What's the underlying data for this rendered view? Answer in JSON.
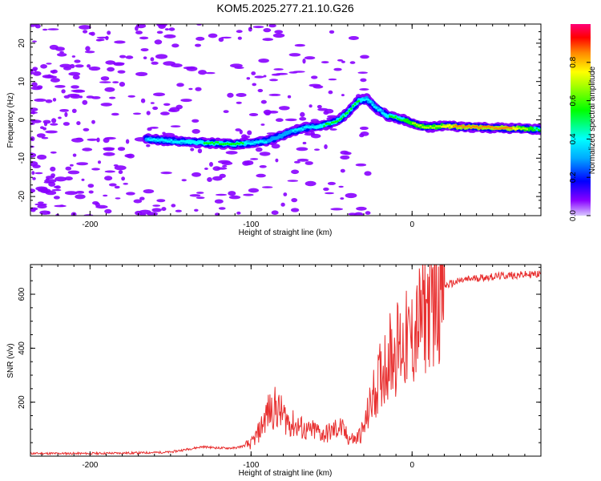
{
  "chart_data": [
    {
      "type": "heatmap",
      "title": "KOM5.2025.277.21.10.G26",
      "xlabel": "Height of straight line (km)",
      "ylabel": "Frequency (Hz)",
      "xlim": [
        -237,
        80
      ],
      "ylim": [
        -25,
        25
      ],
      "xticks": [
        -200,
        -100,
        0
      ],
      "yticks": [
        -20,
        -10,
        0,
        10,
        20
      ],
      "colorbar": {
        "label": "Normalized spectral amplitude",
        "range": [
          0,
          1
        ],
        "ticks": [
          0.0,
          0.2,
          0.4,
          0.6,
          0.8
        ]
      },
      "ridge": {
        "x": [
          -165,
          -150,
          -130,
          -110,
          -100,
          -90,
          -85,
          -75,
          -65,
          -55,
          -45,
          -40,
          -33,
          -28,
          -22,
          -15,
          -10,
          -5,
          0,
          10,
          20,
          30,
          45,
          60,
          70,
          80
        ],
        "freq": [
          -5,
          -5.5,
          -6,
          -6.3,
          -6,
          -5.6,
          -4.8,
          -3,
          -2,
          -1.5,
          0,
          2,
          5,
          5.5,
          3,
          1,
          0.5,
          0,
          -1,
          -2,
          -1.5,
          -1.8,
          -2,
          -2.2,
          -2.3,
          -2.5
        ],
        "amplitude": [
          0.3,
          0.35,
          0.4,
          0.45,
          0.35,
          0.3,
          0.25,
          0.3,
          0.35,
          0.4,
          0.45,
          0.5,
          0.4,
          0.35,
          0.3,
          0.4,
          0.45,
          0.5,
          0.55,
          0.6,
          0.7,
          0.8,
          0.85,
          0.8,
          0.6,
          0.4
        ]
      }
    },
    {
      "type": "line",
      "xlabel": "Height of straight line (km)",
      "ylabel": "SNR (v/v)",
      "xlim": [
        -237,
        80
      ],
      "ylim": [
        0,
        710
      ],
      "xticks": [
        -200,
        -100,
        0
      ],
      "yticks": [
        200,
        400,
        600
      ],
      "series": [
        {
          "name": "SNR",
          "color": "#e83030",
          "x": [
            -237,
            -200,
            -170,
            -150,
            -140,
            -130,
            -120,
            -110,
            -100,
            -95,
            -90,
            -85,
            -80,
            -75,
            -70,
            -65,
            -60,
            -55,
            -50,
            -45,
            -40,
            -35,
            -30,
            -25,
            -20,
            -15,
            -10,
            -5,
            0,
            5,
            10,
            15,
            20,
            30,
            40,
            50,
            60,
            70,
            80
          ],
          "values": [
            10,
            10,
            12,
            15,
            25,
            35,
            30,
            30,
            45,
            90,
            160,
            180,
            150,
            120,
            110,
            90,
            95,
            80,
            90,
            110,
            70,
            60,
            100,
            210,
            290,
            370,
            400,
            420,
            430,
            500,
            560,
            610,
            630,
            650,
            660,
            665,
            670,
            672,
            675
          ]
        }
      ]
    }
  ],
  "colors": {
    "line": "#e83030",
    "frame": "#000000"
  }
}
